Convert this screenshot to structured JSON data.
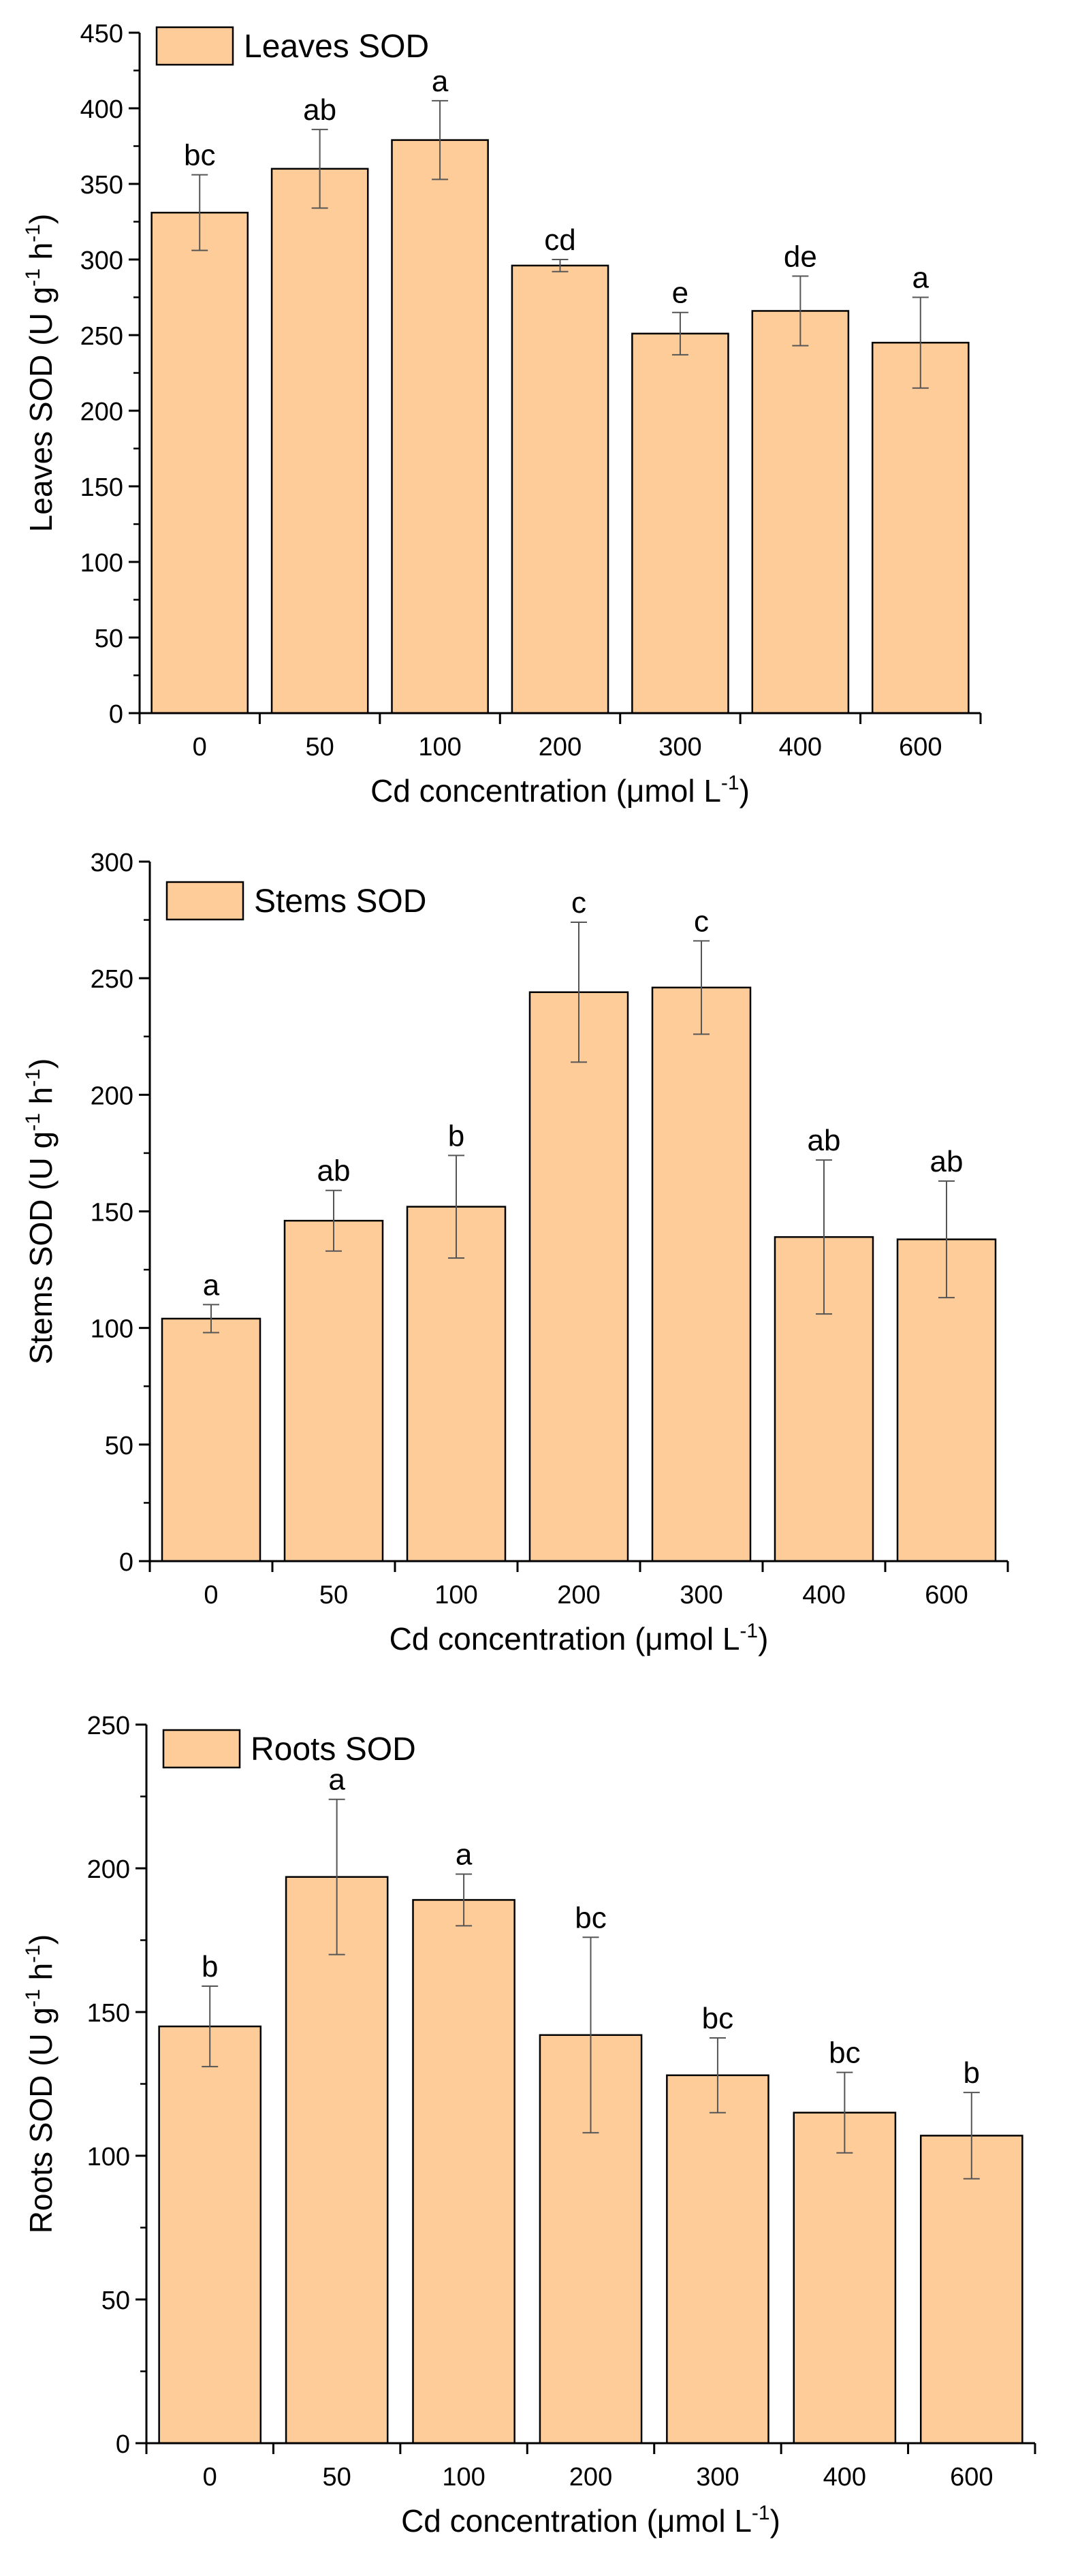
{
  "chart_data": [
    {
      "type": "bar",
      "legend": "Leaves SOD",
      "legend_position": "top-left",
      "xlabel": "Cd concentration (μmol L",
      "xlabel_sup": "-1",
      "xlabel_end": ")",
      "ylabel": "Leaves SOD (U g",
      "ylabel_sup1": "-1",
      "ylabel_mid": " h",
      "ylabel_sup2": "-1",
      "ylabel_end": ")",
      "categories": [
        "0",
        "50",
        "100",
        "200",
        "300",
        "400",
        "600"
      ],
      "values": [
        331,
        360,
        379,
        296,
        251,
        266,
        245
      ],
      "error": [
        25,
        26,
        26,
        4,
        14,
        23,
        30
      ],
      "labels": [
        "bc",
        "ab",
        "a",
        "cd",
        "e",
        "de",
        "a"
      ],
      "ylim": [
        0,
        450
      ],
      "yticks": [
        0,
        50,
        100,
        150,
        200,
        250,
        300,
        350,
        400,
        450
      ],
      "grid": false,
      "bar_color": "#FECC99",
      "edge_color": "#000000"
    },
    {
      "type": "bar",
      "legend": "Stems SOD",
      "legend_position": "top-left",
      "xlabel": "Cd concentration (μmol L",
      "xlabel_sup": "-1",
      "xlabel_end": ")",
      "ylabel": "Stems SOD (U g",
      "ylabel_sup1": "-1",
      "ylabel_mid": " h",
      "ylabel_sup2": "-1",
      "ylabel_end": ")",
      "categories": [
        "0",
        "50",
        "100",
        "200",
        "300",
        "400",
        "600"
      ],
      "values": [
        104,
        146,
        152,
        244,
        246,
        139,
        138
      ],
      "error": [
        6,
        13,
        22,
        30,
        20,
        33,
        25
      ],
      "labels": [
        "a",
        "ab",
        "b",
        "c",
        "c",
        "ab",
        "ab"
      ],
      "ylim": [
        0,
        300
      ],
      "yticks": [
        0,
        50,
        100,
        150,
        200,
        250,
        300
      ],
      "grid": false,
      "bar_color": "#FECC99",
      "edge_color": "#000000"
    },
    {
      "type": "bar",
      "legend": "Roots SOD",
      "legend_position": "top-left",
      "xlabel": "Cd concentration (μmol L",
      "xlabel_sup": "-1",
      "xlabel_end": ")",
      "ylabel": "Roots SOD (U g",
      "ylabel_sup1": "-1",
      "ylabel_mid": " h",
      "ylabel_sup2": "-1",
      "ylabel_end": ")",
      "categories": [
        "0",
        "50",
        "100",
        "200",
        "300",
        "400",
        "600"
      ],
      "values": [
        145,
        197,
        189,
        142,
        128,
        115,
        107
      ],
      "error": [
        14,
        27,
        9,
        34,
        13,
        14,
        15
      ],
      "labels": [
        "b",
        "a",
        "a",
        "bc",
        "bc",
        "bc",
        "b"
      ],
      "ylim": [
        0,
        250
      ],
      "yticks": [
        0,
        50,
        100,
        150,
        200,
        250
      ],
      "grid": false,
      "bar_color": "#FECC99",
      "edge_color": "#000000"
    }
  ]
}
